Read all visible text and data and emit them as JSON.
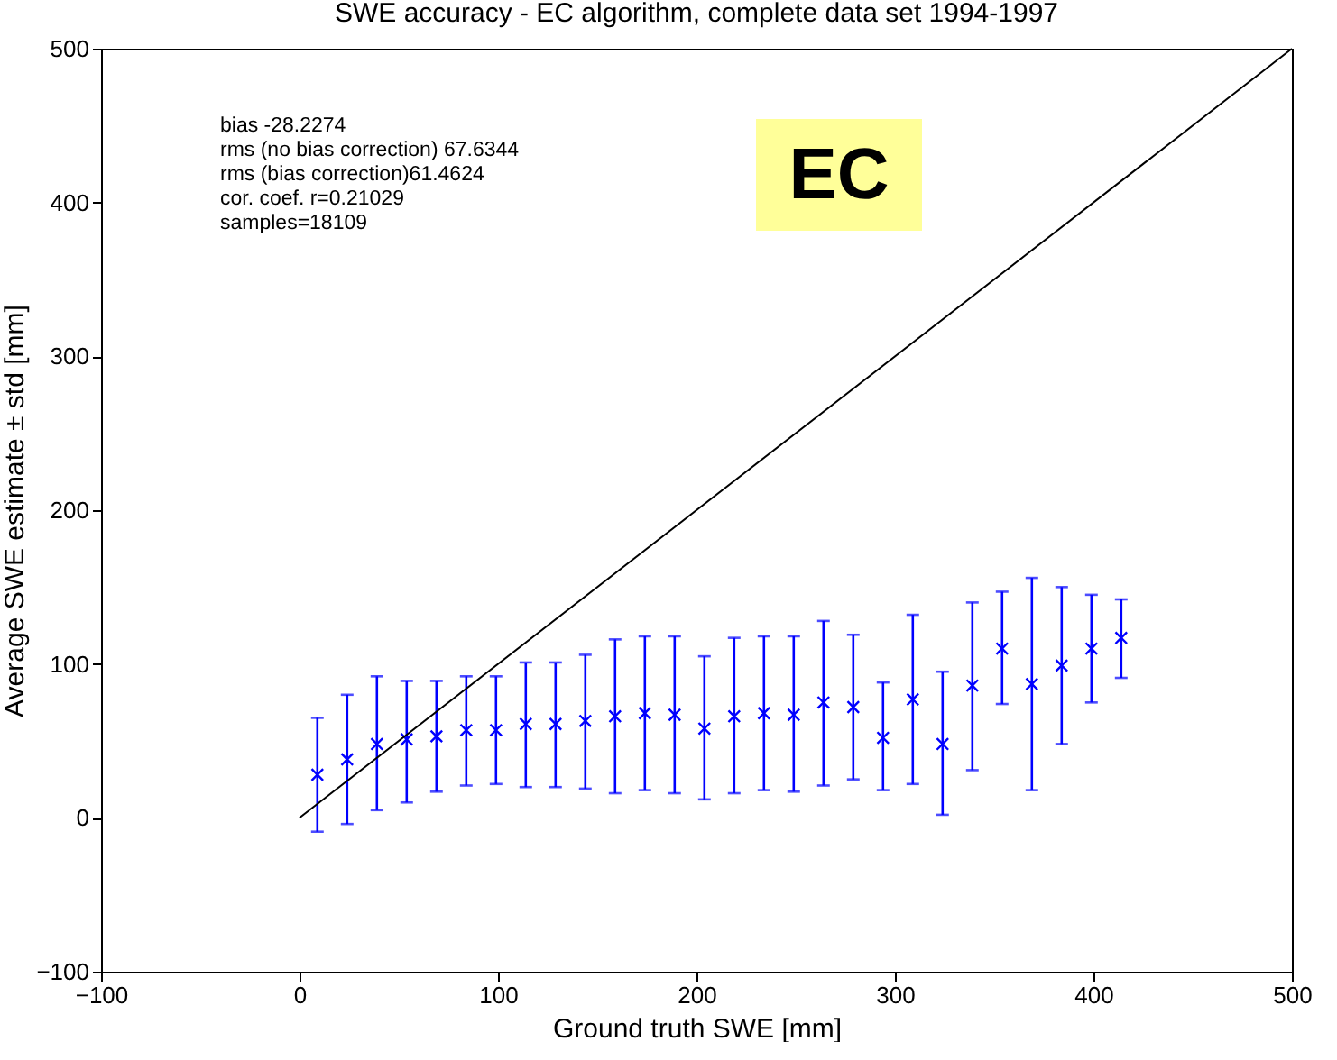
{
  "chart_data": {
    "type": "scatter",
    "title": "SWE accuracy - EC algorithm, complete data set 1994-1997",
    "xlabel": "Ground truth SWE [mm]",
    "ylabel": "Average SWE estimate ± std [mm]",
    "annotations": [
      "bias -28.2274",
      "rms (no bias correction) 67.6344",
      "rms (bias correction)61.4624",
      "cor. coef. r=0.21029",
      "samples=18109",
      "EC"
    ],
    "xlim": [
      -100,
      500
    ],
    "xticks": [
      -100,
      0,
      100,
      200,
      300,
      400,
      500
    ],
    "ylim": [
      -100,
      500
    ],
    "yticks": [
      -100,
      0,
      100,
      200,
      300,
      400,
      500
    ],
    "series": [
      {
        "color": "#0000ff",
        "marker": "cross",
        "x": [
          9,
          24,
          39,
          54,
          69,
          84,
          99,
          114,
          129,
          144,
          159,
          174,
          189,
          204,
          219,
          234,
          249,
          264,
          279,
          294,
          309,
          324,
          339,
          354,
          369,
          384,
          399,
          414
        ],
        "values": [
          28,
          38,
          48,
          51,
          53,
          57,
          57,
          61,
          61,
          63,
          66,
          68,
          67,
          58,
          66,
          68,
          67,
          75,
          72,
          52,
          77,
          48,
          86,
          110,
          87,
          99,
          110,
          117
        ],
        "errors": [
          [
            -9,
            65
          ],
          [
            -4,
            80
          ],
          [
            5,
            92
          ],
          [
            10,
            89
          ],
          [
            17,
            89
          ],
          [
            21,
            92
          ],
          [
            22,
            92
          ],
          [
            20,
            101
          ],
          [
            20,
            101
          ],
          [
            19,
            106
          ],
          [
            16,
            116
          ],
          [
            18,
            118
          ],
          [
            16,
            118
          ],
          [
            12,
            105
          ],
          [
            16,
            117
          ],
          [
            18,
            118
          ],
          [
            17,
            118
          ],
          [
            21,
            128
          ],
          [
            25,
            119
          ],
          [
            18,
            88
          ],
          [
            22,
            132
          ],
          [
            2,
            95
          ],
          [
            31,
            140
          ],
          [
            74,
            147
          ],
          [
            18,
            156
          ],
          [
            48,
            150
          ],
          [
            75,
            145
          ],
          [
            91,
            142
          ]
        ]
      },
      {
        "type": "line",
        "color": "#000000",
        "x": [
          0,
          500
        ],
        "values": [
          0,
          500
        ]
      }
    ]
  }
}
